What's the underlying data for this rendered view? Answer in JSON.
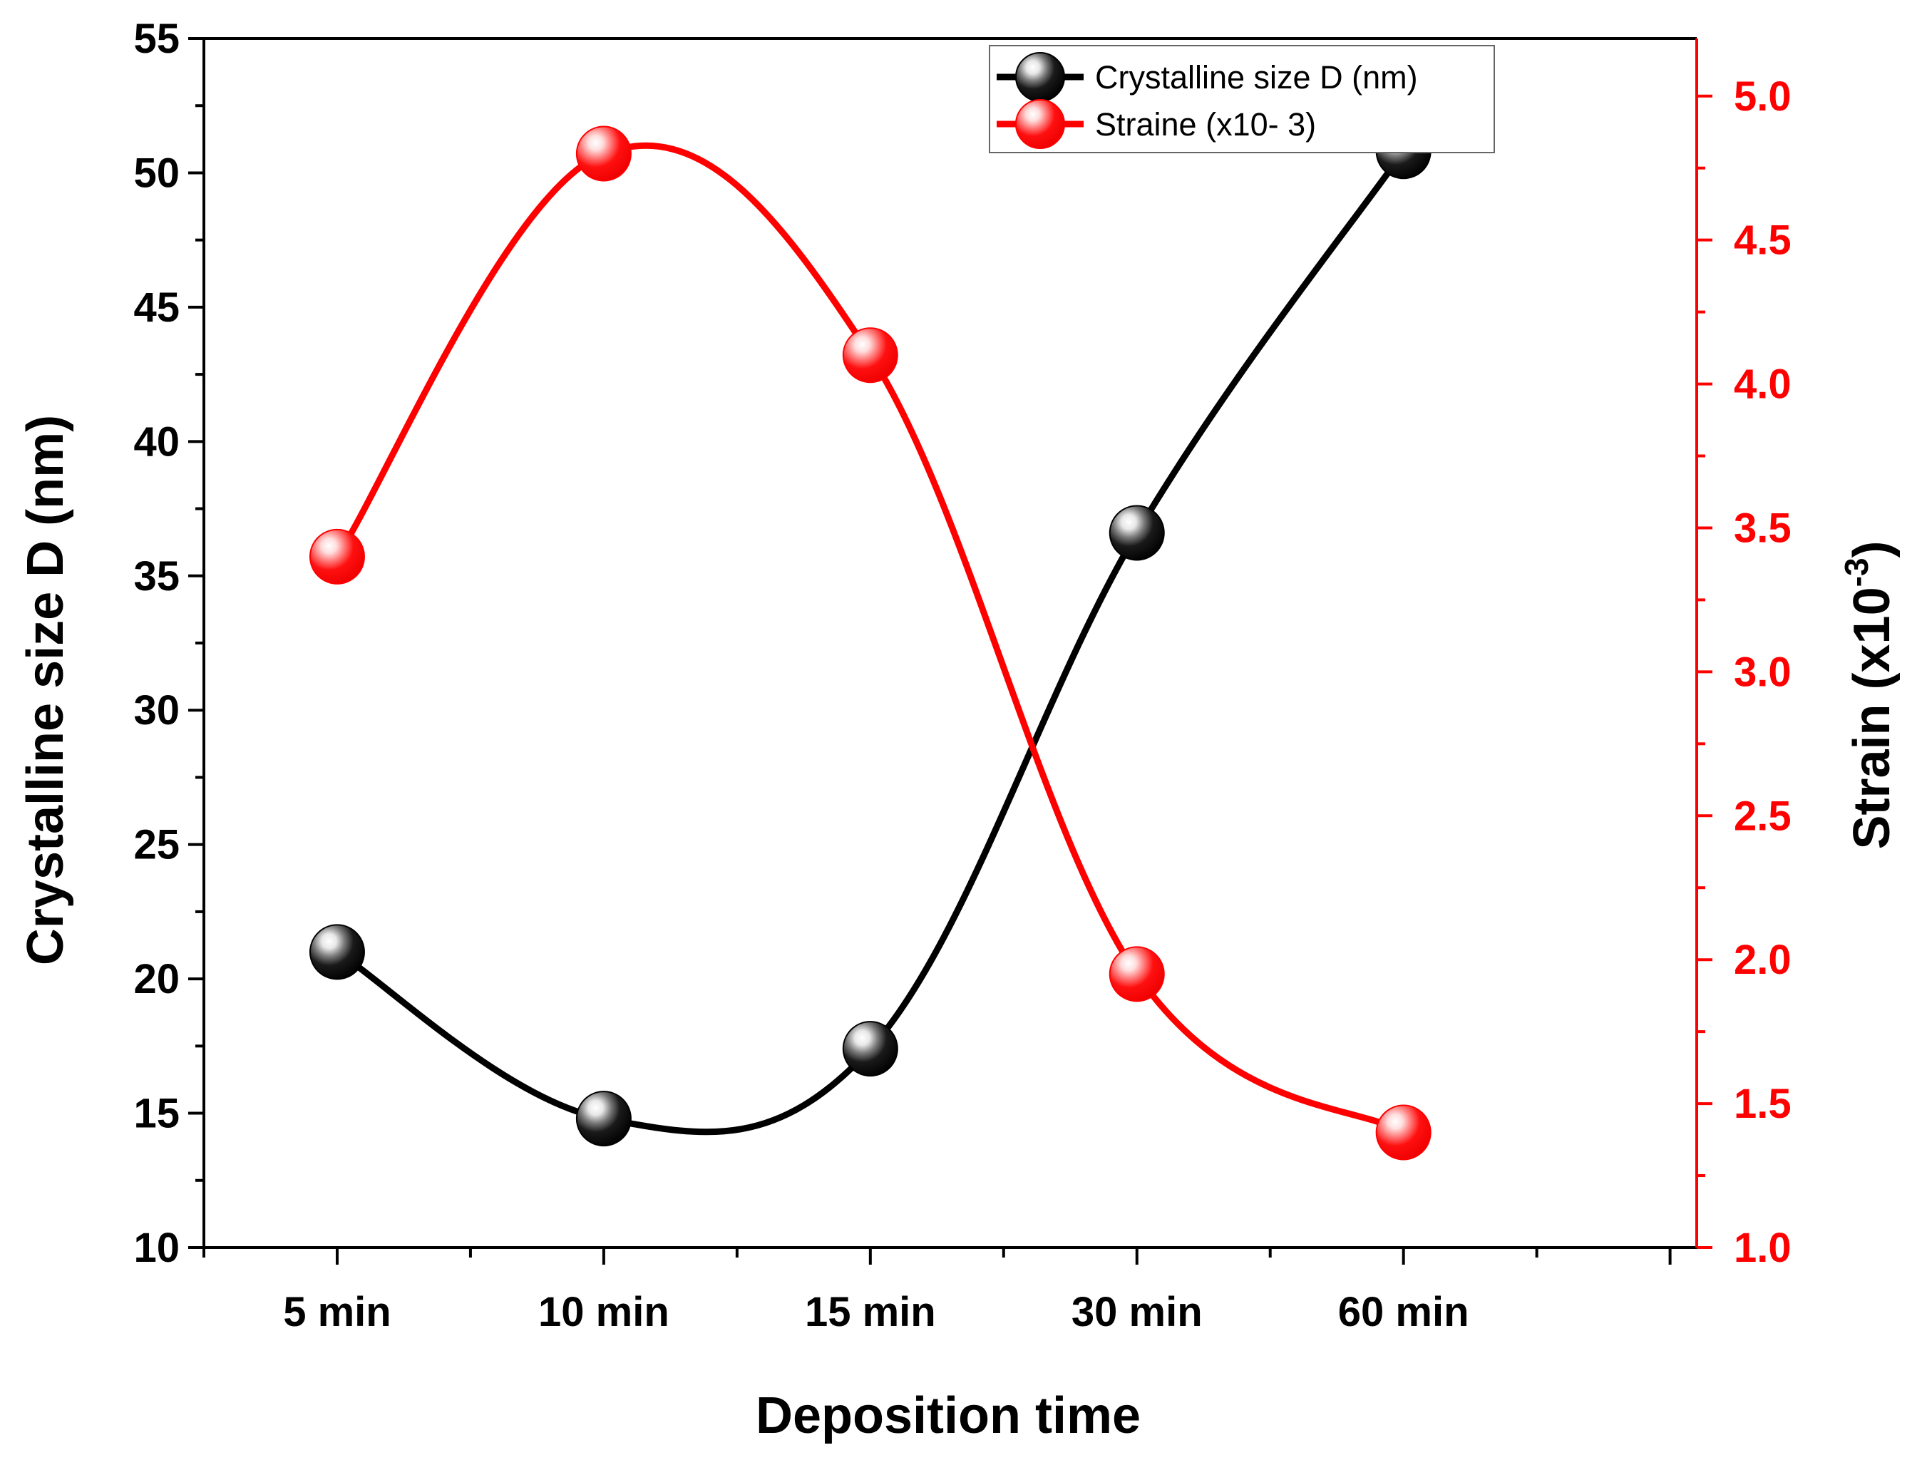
{
  "chart_data": {
    "type": "line",
    "categories": [
      "5 min",
      "10 min",
      "15 min",
      "30 min",
      "60 min"
    ],
    "xlabel": "Deposition time",
    "ylabel_left": "Crystalline size D (nm)",
    "ylabel_right": {
      "base": "Strain (x10",
      "exponent": "-3",
      "close": ")"
    },
    "ylim_left": [
      10,
      55
    ],
    "yticks_left": [
      10,
      15,
      20,
      25,
      30,
      35,
      40,
      45,
      50,
      55
    ],
    "ylim_right": [
      1.0,
      5.2
    ],
    "yticks_right": [
      1.0,
      1.5,
      2.0,
      2.5,
      3.0,
      3.5,
      4.0,
      4.5,
      5.0
    ],
    "grid": false,
    "legend_position": "top-right",
    "series": [
      {
        "name": "Crystalline size D (nm)",
        "axis": "left",
        "color": "#000000",
        "values": [
          21.0,
          14.8,
          17.4,
          36.6,
          50.8
        ]
      },
      {
        "name": "Straine (x10- 3)",
        "axis": "right",
        "color": "#ff0000",
        "values": [
          3.4,
          4.8,
          4.1,
          1.95,
          1.4
        ]
      }
    ]
  }
}
